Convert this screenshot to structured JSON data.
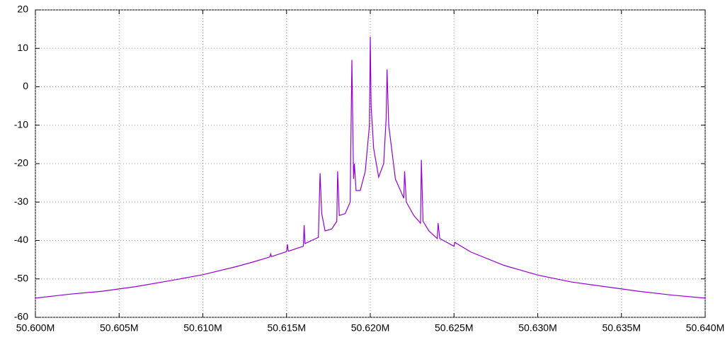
{
  "chart_data": {
    "type": "line",
    "x": [
      50600000,
      50602000,
      50604000,
      50606000,
      50608000,
      50610000,
      50612000,
      50613000,
      50614000,
      50614050,
      50614100,
      50615000,
      50615050,
      50615100,
      50616000,
      50616050,
      50616100,
      50616900,
      50617000,
      50617100,
      50617300,
      50617700,
      50618000,
      50618050,
      50618150,
      50618500,
      50618800,
      50618900,
      50619000,
      50619050,
      50619150,
      50619400,
      50619700,
      50619950,
      50620000,
      50620050,
      50620200,
      50620500,
      50620800,
      50620950,
      50621000,
      50621100,
      50621500,
      50622000,
      50622050,
      50622150,
      50622600,
      50623000,
      50623050,
      50623150,
      50623500,
      50624000,
      50624050,
      50624150,
      50625000,
      50625050,
      50626000,
      50628000,
      50630000,
      50632000,
      50634000,
      50636000,
      50638000,
      50640000
    ],
    "values": [
      -55,
      -54,
      -53.2,
      -52,
      -50.5,
      -48.9,
      -46.8,
      -45.6,
      -44.3,
      -43.5,
      -44.2,
      -42.9,
      -41,
      -42.8,
      -41.5,
      -36,
      -40.8,
      -39.2,
      -22.5,
      -33,
      -37.5,
      -37,
      -35,
      -22,
      -33.5,
      -33,
      -30,
      7,
      -24,
      -20,
      -27,
      -27,
      -22,
      -10,
      13,
      -5,
      -16,
      -23.5,
      -20,
      -8,
      4.5,
      -10,
      -24,
      -29,
      -22,
      -30,
      -33.5,
      -35.5,
      -19,
      -35,
      -37.5,
      -39.5,
      -35.5,
      -39.5,
      -41.5,
      -40.5,
      -43,
      -46.5,
      -49,
      -50.8,
      -52,
      -53.2,
      -54.2,
      -55
    ],
    "color": "#9400d3",
    "xlim": [
      50600000,
      50640000
    ],
    "xticks": [
      {
        "value": 50600000,
        "label": "50.600M"
      },
      {
        "value": 50605000,
        "label": "50.605M"
      },
      {
        "value": 50610000,
        "label": "50.610M"
      },
      {
        "value": 50615000,
        "label": "50.615M"
      },
      {
        "value": 50620000,
        "label": "50.620M"
      },
      {
        "value": 50625000,
        "label": "50.625M"
      },
      {
        "value": 50630000,
        "label": "50.630M"
      },
      {
        "value": 50635000,
        "label": "50.635M"
      },
      {
        "value": 50640000,
        "label": "50.640M"
      }
    ],
    "ylim": [
      -60,
      20
    ],
    "yticks": [
      -60,
      -50,
      -40,
      -30,
      -20,
      -10,
      0,
      10,
      20
    ],
    "grid": true
  }
}
